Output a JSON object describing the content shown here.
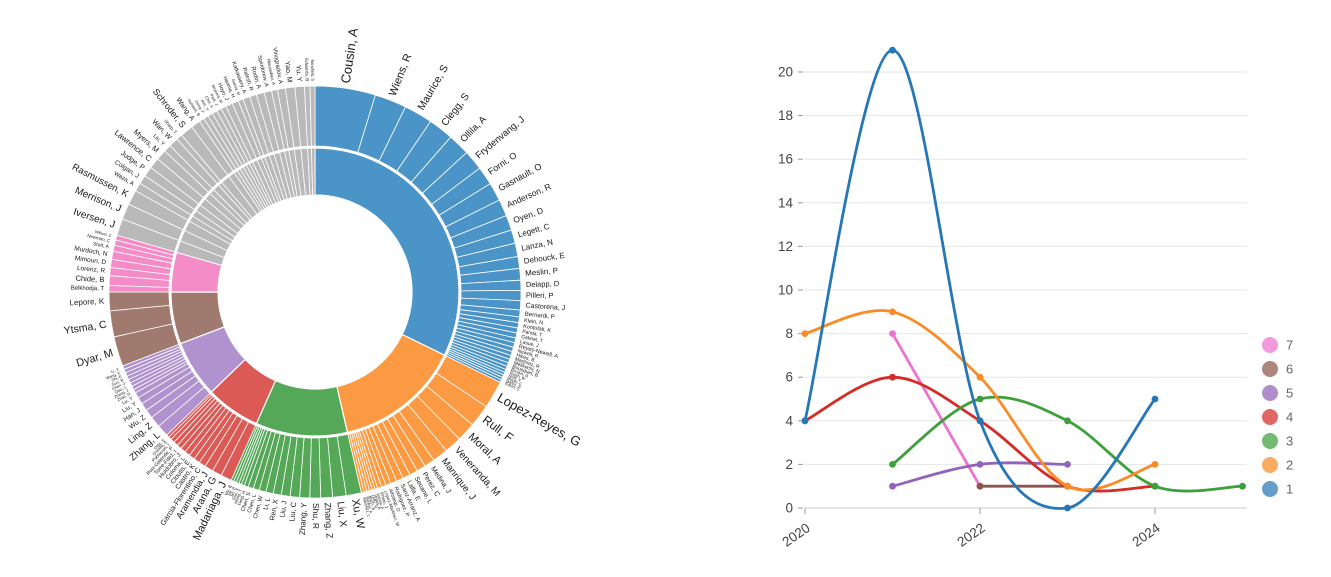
{
  "colors": {
    "background": "#ffffff",
    "label_text": "#1a1a1a",
    "axis_text": "#444444",
    "legend_text": "#666666",
    "gridline": "#e6e6e6",
    "axis_line": "#c9c9c9",
    "tick_mark": "#999999"
  },
  "chart_data": [
    {
      "type": "sunburst",
      "title": "",
      "rings": [
        "cluster",
        "author"
      ],
      "note_author_format": [
        "name",
        "arc_weight",
        "label_font_px"
      ],
      "clusters": [
        {
          "id": "1",
          "color": "#4b94c8",
          "start_deg": 0,
          "end_deg": 116,
          "singletons": false,
          "authors": [
            [
              "Cousin, A",
              18,
              13
            ],
            [
              "Wiens, R",
              9.5,
              11
            ],
            [
              "Maurice, S",
              8.5,
              10.5
            ],
            [
              "Clegg, S",
              7.5,
              10
            ],
            [
              "Ollila, A",
              6.5,
              9.5
            ],
            [
              "Frydenvang, J",
              6,
              9.5
            ],
            [
              "Forni, O",
              5.5,
              9
            ],
            [
              "Gasnault, O",
              5.5,
              9
            ],
            [
              "Anderson, R",
              5,
              8.5
            ],
            [
              "Oyen, D",
              4.5,
              8.5
            ],
            [
              "Legett, C",
              4,
              8
            ],
            [
              "Lanza, N",
              4,
              8
            ],
            [
              "Dehouck, E",
              3.5,
              8
            ],
            [
              "Meslin, P",
              3.5,
              8
            ],
            [
              "Delapp, D",
              3,
              7.5
            ],
            [
              "Pilleri, P",
              3,
              7.5
            ],
            [
              "Castorena, J",
              2.8,
              7
            ],
            [
              "Bernardi, P",
              2,
              6
            ],
            [
              "Klein, N",
              1.7,
              5.5
            ],
            [
              "Kontolati, K",
              1.6,
              5.5
            ],
            [
              "Panda, T",
              1.5,
              5
            ],
            [
              "Gabriel, T",
              1.5,
              5
            ],
            [
              "Lasue, J",
              1.4,
              5
            ],
            [
              "Reyes-Newell, A",
              1.4,
              5.5
            ],
            [
              "Newell, R",
              1.3,
              5
            ],
            [
              "Hibos, B",
              1.2,
              5
            ],
            [
              "Martinez, R",
              1.2,
              5
            ],
            [
              "Melikechi, N",
              1.1,
              5
            ],
            [
              "Bousquet, B",
              1.1,
              5
            ],
            [
              "Brown, A",
              1,
              4.5
            ],
            [
              "Rapin, W",
              0.9,
              4
            ],
            [
              "Reid, V",
              0.8,
              4
            ],
            [
              "Royer, C",
              0.8,
              4
            ],
            [
              "Baron, S",
              0.8,
              4
            ],
            [
              "Eaton, S",
              0.8,
              4
            ]
          ]
        },
        {
          "id": "2",
          "color": "#fb9a43",
          "start_deg": 116,
          "end_deg": 167,
          "singletons": false,
          "authors": [
            [
              "Lopez-Reyes, G",
              8,
              13
            ],
            [
              "Rull, F",
              6.5,
              12
            ],
            [
              "Moral, A",
              5.5,
              11
            ],
            [
              "Veneranda, M",
              5,
              10
            ],
            [
              "Manrique, J",
              4.5,
              9.5
            ],
            [
              "Medina, J",
              3,
              7
            ],
            [
              "Perez, C",
              2.6,
              7
            ],
            [
              "Seoane, L",
              2.4,
              6.5
            ],
            [
              "Lalla, E",
              2.2,
              6.5
            ],
            [
              "Sanz-Arranz, A",
              2,
              6
            ],
            [
              "Rodriguez, P",
              1.8,
              5.5
            ],
            [
              "Allistegi, O",
              1.5,
              5
            ],
            [
              "Lopez-Martinez, M",
              1.3,
              4.5
            ],
            [
              "Prieto, J",
              1.2,
              4.5
            ],
            [
              "Garcia, A",
              0.8,
              4
            ],
            [
              "Vegas, A",
              0.8,
              4
            ],
            [
              "Ortiz, R",
              0.8,
              4
            ],
            [
              "Marin, B",
              0.8,
              4
            ],
            [
              "Santos, A",
              0.8,
              4
            ],
            [
              "Sanchez, C",
              0.8,
              4
            ]
          ]
        },
        {
          "id": "3",
          "color": "#54a857",
          "start_deg": 167,
          "end_deg": 204,
          "singletons": false,
          "authors": [
            [
              "Xu, W",
              4.5,
              11
            ],
            [
              "Liu, X",
              4,
              10
            ],
            [
              "Zhang, Z",
              3.5,
              9
            ],
            [
              "Shu, R",
              3.2,
              8.5
            ],
            [
              "Zhang, Y",
              3,
              8
            ],
            [
              "Liu, C",
              2.8,
              7.5
            ],
            [
              "Liu, J",
              2.6,
              7
            ],
            [
              "Ren, X",
              2.4,
              7
            ],
            [
              "Li, L",
              2.2,
              6.5
            ],
            [
              "Chen, W",
              2,
              6
            ],
            [
              "Chen, L",
              1.8,
              5.5
            ],
            [
              "Chen, S",
              1.6,
              5.5
            ],
            [
              "Yang, H",
              1.2,
              4.5
            ],
            [
              "Wang, Y",
              0.9,
              4
            ],
            [
              "Gao, X",
              0.8,
              4
            ],
            [
              "Jin, C",
              0.8,
              4
            ],
            [
              "He, Z",
              0.8,
              4
            ],
            [
              "Wu, B",
              0.8,
              4
            ]
          ]
        },
        {
          "id": "4",
          "color": "#db5a56",
          "start_deg": 204,
          "end_deg": 226,
          "singletons": false,
          "authors": [
            [
              "Madariaga, J",
              3.2,
              11
            ],
            [
              "Arana, G",
              2.8,
              10
            ],
            [
              "Aramendia, J",
              2.5,
              9
            ],
            [
              "Garcia-Florentino, C",
              2,
              7.5
            ],
            [
              "Castro, K",
              1.8,
              7
            ],
            [
              "Cloutis, E",
              1.7,
              6.5
            ],
            [
              "Coloma, L",
              1.6,
              6
            ],
            [
              "Huidobro, J",
              1.5,
              6
            ],
            [
              "Torre-Fdez, I",
              1.4,
              5.5
            ],
            [
              "Ruiz-Galende, P",
              1.3,
              5
            ],
            [
              "Poblacion, I",
              1.2,
              4.5
            ],
            [
              "Gredilla, A",
              0.9,
              4
            ],
            [
              "Ortiz, S",
              0.8,
              4
            ]
          ]
        },
        {
          "id": "5",
          "color": "#b093ce",
          "start_deg": 226,
          "end_deg": 249,
          "singletons": false,
          "authors": [
            [
              "Zhang, L",
              2.6,
              9.5
            ],
            [
              "Ling, Z",
              2.4,
              9
            ],
            [
              "Wu, Z",
              1.9,
              7
            ],
            [
              "Han, J",
              1.7,
              6.5
            ],
            [
              "Liu, Y",
              1.5,
              6
            ],
            [
              "Lu, Y",
              1.2,
              5
            ],
            [
              "Zhao, H",
              0.8,
              4
            ],
            [
              "Zhang, J",
              0.8,
              4
            ],
            [
              "Qiao, L",
              0.8,
              4
            ],
            [
              "Chen, J",
              0.8,
              4
            ],
            [
              "Guo, B",
              0.8,
              4
            ],
            [
              "Shi, E",
              0.8,
              4
            ],
            [
              "Wang, X",
              0.8,
              4
            ],
            [
              "Li, Y",
              0.8,
              4
            ]
          ]
        },
        {
          "id": "6",
          "color": "#a17a6f",
          "start_deg": 249,
          "end_deg": 270,
          "singletons": false,
          "authors": [
            [
              "Dyar, M",
              8,
              11
            ],
            [
              "Ytsma, C",
              7,
              10.5
            ],
            [
              "Lepore, K",
              5,
              8
            ]
          ]
        },
        {
          "id": "7",
          "color": "#f48cc8",
          "start_deg": 270,
          "end_deg": 286,
          "singletons": false,
          "authors": [
            [
              "Belkhodja, T",
              1.6,
              6
            ],
            [
              "Chide, B",
              2.4,
              7.5
            ],
            [
              "Lorenz, R",
              2,
              6.5
            ],
            [
              "Mimoun, D",
              2,
              6.5
            ],
            [
              "Murdoch, N",
              2,
              6.5
            ],
            [
              "Stott, A",
              1.5,
              5
            ],
            [
              "Newman, C",
              1.3,
              4.5
            ],
            [
              "Wilson, C",
              1.2,
              4
            ]
          ]
        },
        {
          "id": "unclustered",
          "color": "#b9b9b9",
          "start_deg": 286,
          "end_deg": 360,
          "singletons": true,
          "authors": [
            [
              "Iversen, J",
              3.4,
              10
            ],
            [
              "Merrison, J",
              3.2,
              10
            ],
            [
              "Rasmussen, K",
              3,
              9.5
            ],
            [
              "Waza, A",
              1.7,
              6
            ],
            [
              "Colgan, J",
              1.8,
              6.5
            ],
            [
              "Judge, P",
              2,
              7
            ],
            [
              "Lawrence, C",
              2.2,
              8
            ],
            [
              "Myers, M",
              2.1,
              7.5
            ],
            [
              "Liu, Y",
              1.5,
              5.5
            ],
            [
              "Wan, W",
              1.9,
              7
            ],
            [
              "Sharp, T",
              1.2,
              4.5
            ],
            [
              "Schroder, S",
              2.6,
              9
            ],
            [
              "Wang, A",
              1.9,
              7
            ],
            [
              "Holstein, B",
              1,
              4
            ],
            [
              "Deng, F",
              1,
              4
            ],
            [
              "Kim, Y",
              1,
              4
            ],
            [
              "Choi, S",
              1,
              4
            ],
            [
              "Park, J",
              1,
              4
            ],
            [
              "Brizuela, M",
              1,
              4
            ],
            [
              "Hoyo, J",
              1.4,
              5.5
            ],
            [
              "Harima, H",
              1.3,
              5
            ],
            [
              "Garcia, M",
              1,
              4
            ],
            [
              "Katkassery, A",
              1.4,
              5.5
            ],
            [
              "Ralesh, R",
              1.4,
              5.5
            ],
            [
              "Rodin, A",
              1.6,
              6
            ],
            [
              "Spiridonov, A",
              1.5,
              5.5
            ],
            [
              "Mouradian, A",
              1.2,
              4.5
            ],
            [
              "Vinogradov, A",
              1.6,
              6
            ],
            [
              "Yao, M",
              1.9,
              7
            ],
            [
              "Yu, Y",
              1.9,
              7
            ],
            [
              "Edwards, B",
              1.1,
              4.5
            ],
            [
              "Bandfield, S",
              1,
              4
            ]
          ]
        }
      ]
    },
    {
      "type": "line",
      "title": "",
      "xlabel": "",
      "ylabel": "",
      "x_ticks_labeled": [
        2020,
        2022,
        2024
      ],
      "y_ticks": [
        0,
        2,
        4,
        6,
        8,
        10,
        12,
        14,
        16,
        18,
        20
      ],
      "x_range": [
        2020,
        2025.1
      ],
      "y_range": [
        0,
        21.2
      ],
      "grid": true,
      "legend_position": "right",
      "legend_order_top_to_bottom": [
        "7",
        "6",
        "5",
        "4",
        "3",
        "2",
        "1"
      ],
      "series": [
        {
          "name": "1",
          "color": "#2677b8",
          "points": [
            [
              2020,
              4
            ],
            [
              2021,
              21
            ],
            [
              2022,
              4
            ],
            [
              2023,
              0
            ],
            [
              2024,
              5
            ]
          ]
        },
        {
          "name": "2",
          "color": "#fb8b25",
          "points": [
            [
              2020,
              8
            ],
            [
              2021,
              9
            ],
            [
              2022,
              6
            ],
            [
              2023,
              1
            ],
            [
              2024,
              2
            ]
          ]
        },
        {
          "name": "3",
          "color": "#3da03b",
          "points": [
            [
              2021,
              2
            ],
            [
              2022,
              5
            ],
            [
              2023,
              4
            ],
            [
              2024,
              1
            ],
            [
              2025,
              1
            ]
          ]
        },
        {
          "name": "4",
          "color": "#d62c28",
          "points": [
            [
              2020,
              4
            ],
            [
              2021,
              6
            ],
            [
              2022,
              4
            ],
            [
              2023,
              1
            ],
            [
              2024,
              1
            ]
          ]
        },
        {
          "name": "5",
          "color": "#9263ba",
          "points": [
            [
              2021,
              1
            ],
            [
              2022,
              2
            ],
            [
              2023,
              2
            ]
          ]
        },
        {
          "name": "6",
          "color": "#8c564b",
          "points": [
            [
              2022,
              1
            ],
            [
              2023,
              1
            ]
          ]
        },
        {
          "name": "7",
          "color": "#ec74d0",
          "points": [
            [
              2021,
              8
            ],
            [
              2022,
              1
            ]
          ]
        }
      ]
    }
  ]
}
